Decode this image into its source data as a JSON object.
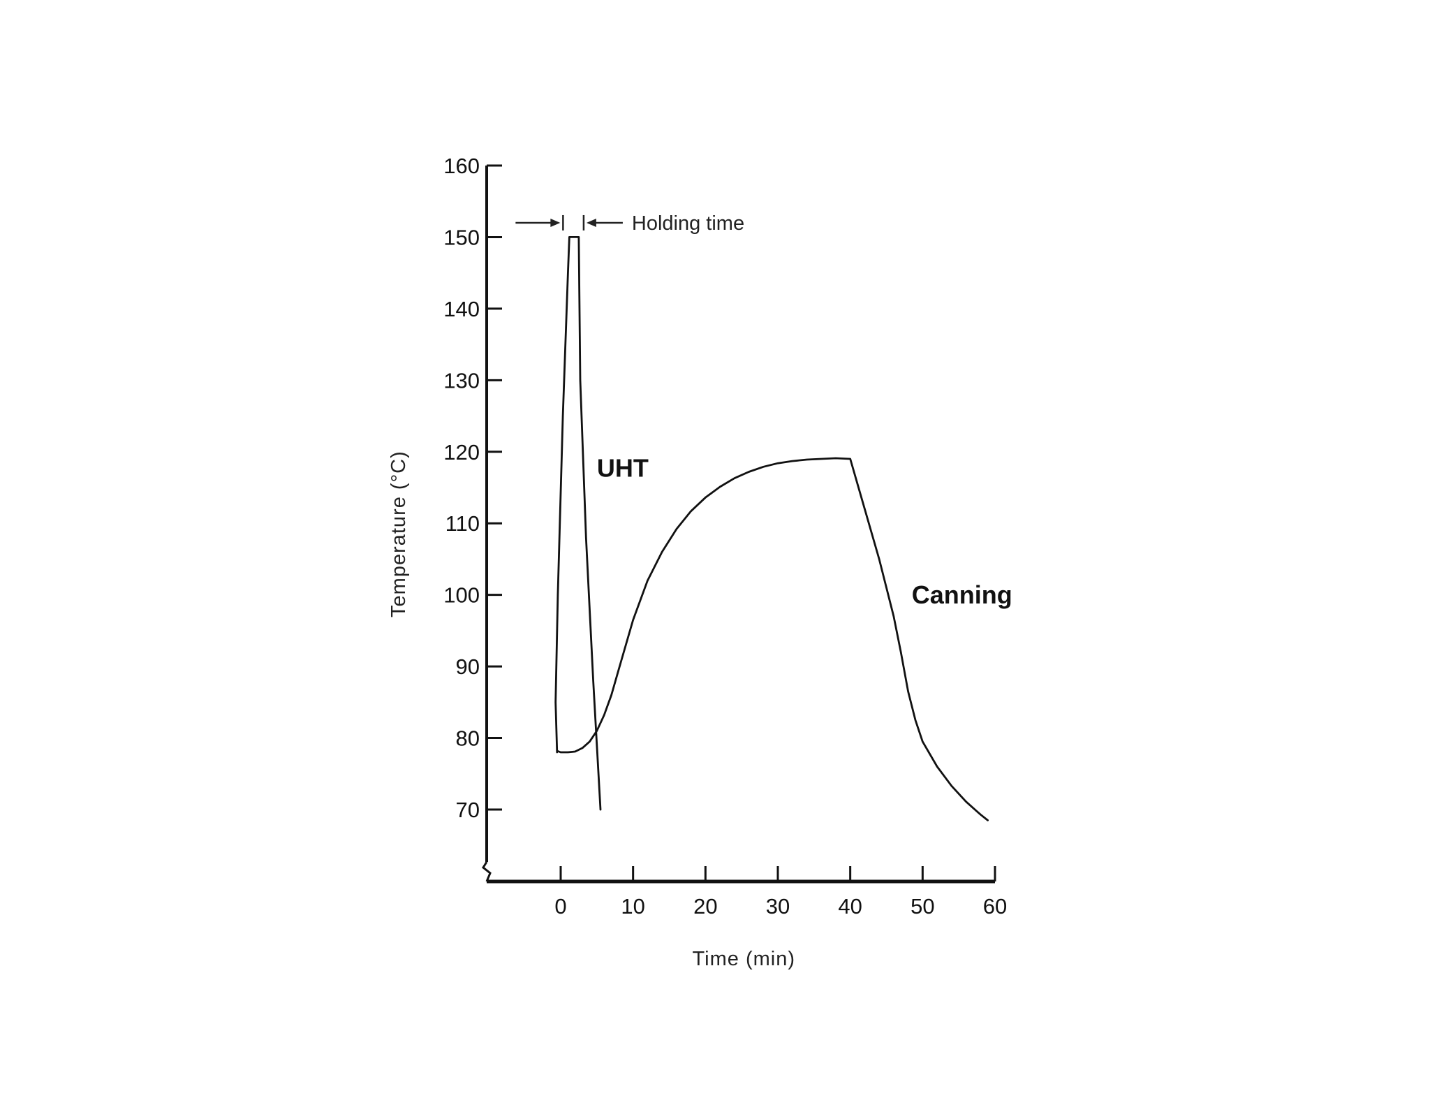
{
  "chart_data": {
    "type": "line",
    "xlabel": "Time (min)",
    "ylabel": "Temperature (°C)",
    "xlim": [
      -10,
      60
    ],
    "ylim": [
      60,
      160
    ],
    "xticks": [
      0,
      10,
      20,
      30,
      40,
      50,
      60
    ],
    "yticks": [
      70,
      80,
      90,
      100,
      110,
      120,
      130,
      140,
      150,
      160
    ],
    "grid": false,
    "legend": "none",
    "annotation": {
      "text": "Holding time",
      "x_range": [
        1,
        2.5
      ],
      "y": 152
    },
    "series": [
      {
        "name": "UHT",
        "color": "#111111",
        "x": [
          -0.5,
          -0.7,
          -0.4,
          0.3,
          1,
          1.2,
          2.5,
          2.7,
          3.5,
          4.5,
          5.5
        ],
        "y": [
          78,
          85,
          100,
          125,
          145,
          150,
          150,
          130,
          108,
          88,
          70
        ]
      },
      {
        "name": "Canning",
        "color": "#111111",
        "x": [
          -0.5,
          0,
          1,
          2,
          3,
          4,
          5,
          6,
          7,
          8,
          9,
          10,
          12,
          14,
          16,
          18,
          20,
          22,
          24,
          26,
          28,
          30,
          32,
          34,
          36,
          38,
          40,
          42,
          44,
          46,
          47,
          48,
          49,
          50,
          52,
          54,
          56,
          58,
          59
        ],
        "y": [
          78.2,
          78,
          78,
          78.1,
          78.6,
          79.5,
          81,
          83.2,
          86,
          89.5,
          93,
          96.5,
          102,
          106,
          109.2,
          111.7,
          113.6,
          115.1,
          116.3,
          117.2,
          117.9,
          118.4,
          118.7,
          118.9,
          119,
          119.1,
          119,
          112,
          105,
          97,
          92,
          86.5,
          82.5,
          79.5,
          76,
          73.3,
          71.1,
          69.3,
          68.5
        ]
      }
    ]
  }
}
